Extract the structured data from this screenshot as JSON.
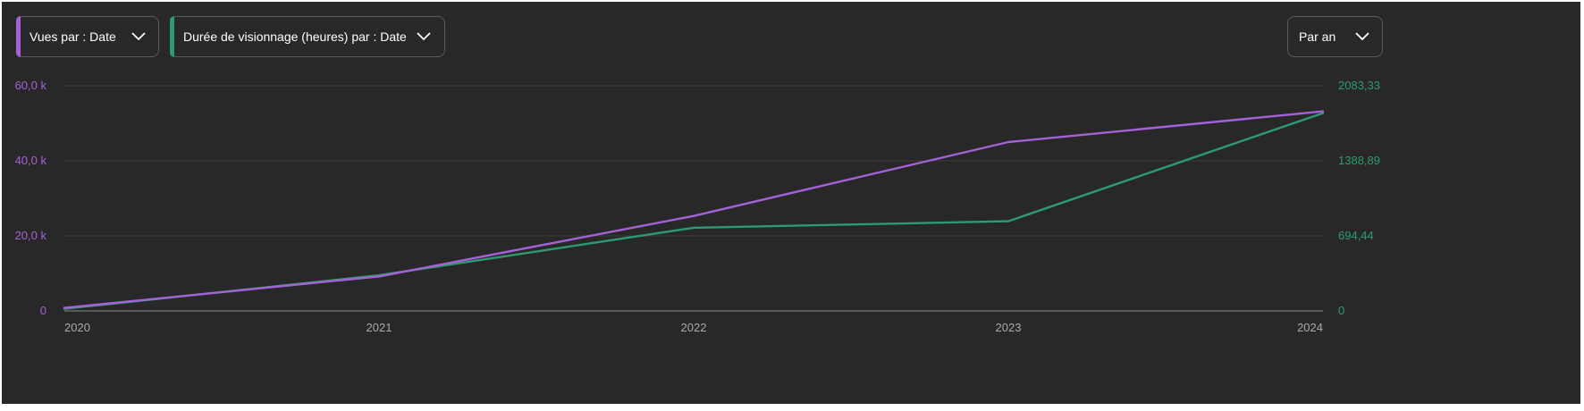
{
  "controls": {
    "metric1_label": "Vues par : Date",
    "metric2_label": "Durée de visionnage (heures) par : Date",
    "period_label": "Par an"
  },
  "colors": {
    "background": "#282828",
    "views": "#a461d8",
    "watch_time": "#2d9b6f",
    "axis_text": "#aaaaaa",
    "grid": "#3d3d3d"
  },
  "chart_data": {
    "type": "line",
    "x": [
      "2020",
      "2021",
      "2022",
      "2023",
      "2024"
    ],
    "series": [
      {
        "name": "Vues",
        "axis": "left",
        "values": [
          800,
          9200,
          25300,
          45000,
          53200
        ]
      },
      {
        "name": "Durée de visionnage (heures)",
        "axis": "right",
        "values": [
          20,
          330,
          770,
          830,
          1830
        ]
      }
    ],
    "y_left": {
      "ticks": [
        0,
        20000,
        40000,
        60000
      ],
      "tick_labels": [
        "0",
        "20,0 k",
        "40,0 k",
        "60,0 k"
      ],
      "ylim": [
        0,
        60000
      ]
    },
    "y_right": {
      "ticks": [
        0,
        694.44,
        1388.89,
        2083.33
      ],
      "tick_labels": [
        "0",
        "694,44",
        "1388,89",
        "2083,33"
      ],
      "ylim": [
        0,
        2083.33
      ]
    },
    "grid": true
  }
}
